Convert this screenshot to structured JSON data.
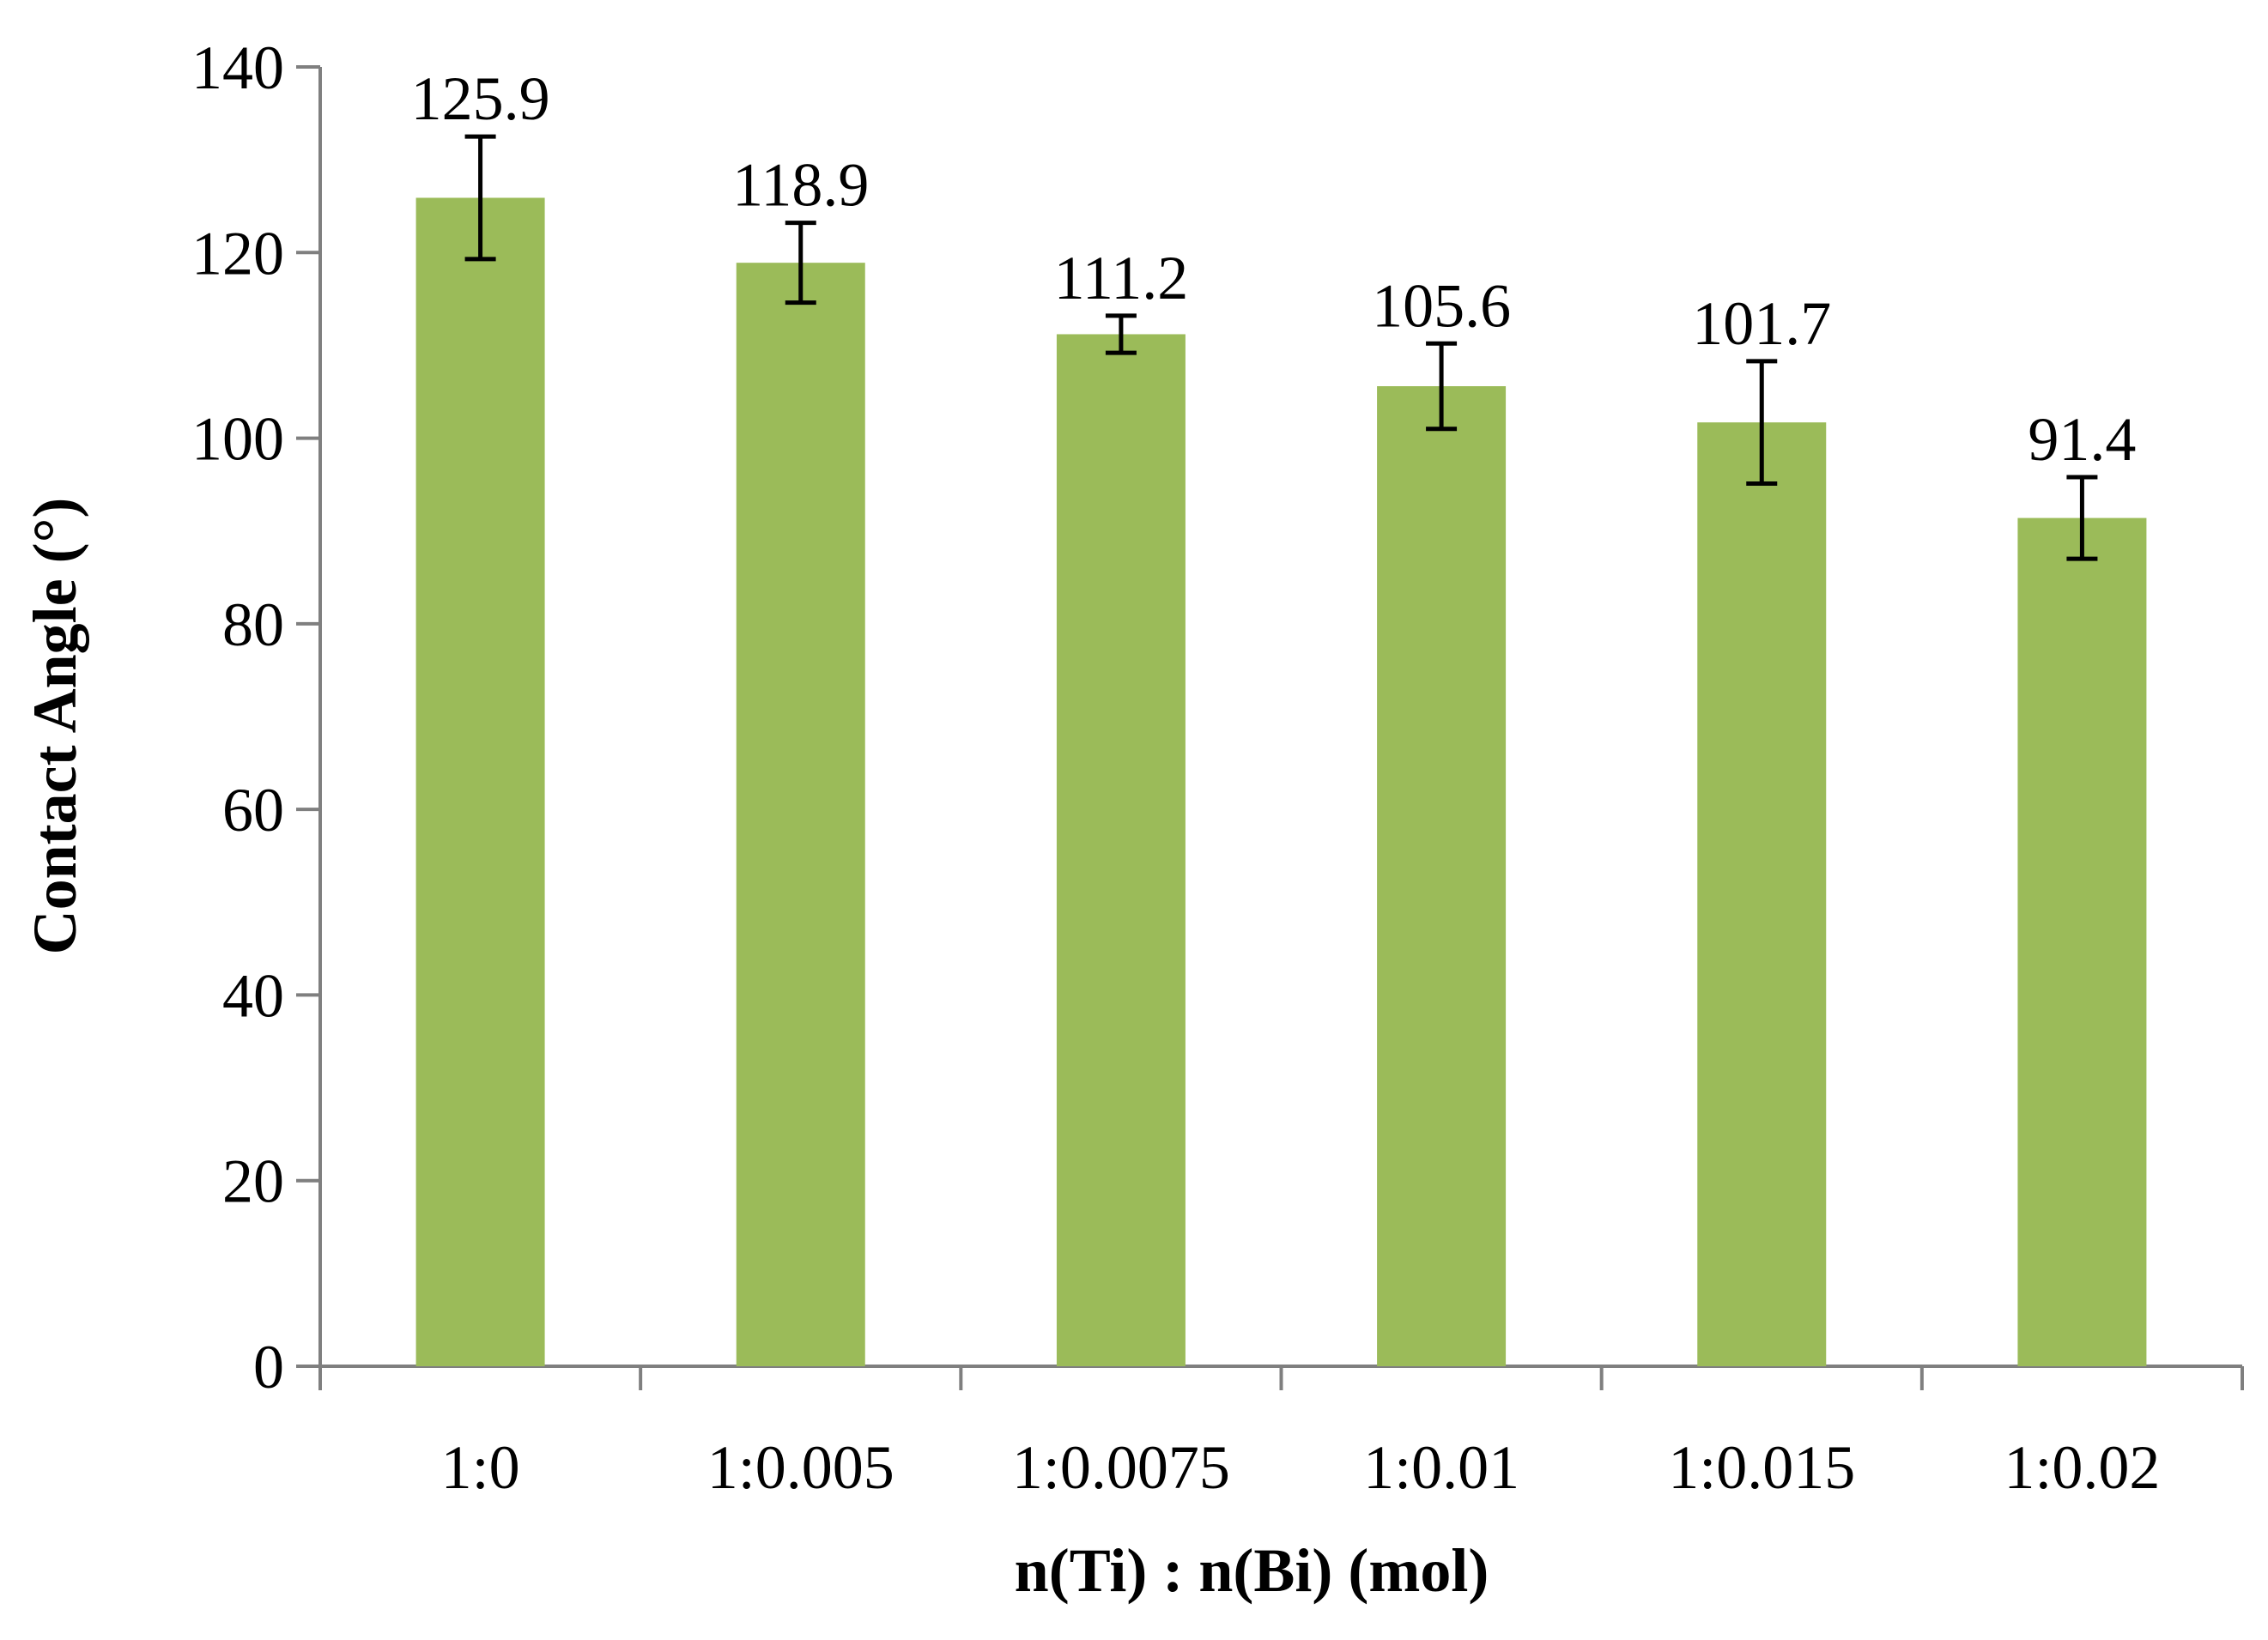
{
  "chart_data": {
    "type": "bar",
    "title": "",
    "xlabel": "n(Ti) : n(Bi) (mol)",
    "ylabel": "Contact Angle (°)",
    "categories": [
      "1:0",
      "1:0.005",
      "1:0.0075",
      "1:0.01",
      "1:0.015",
      "1:0.02"
    ],
    "values": [
      125.9,
      118.9,
      111.2,
      105.6,
      101.7,
      91.4
    ],
    "value_labels": [
      "125.9",
      "118.9",
      "111.2",
      "105.6",
      "101.7",
      "91.4"
    ],
    "error_bars": [
      6.6,
      4.3,
      2.0,
      4.6,
      6.6,
      4.4
    ],
    "ylim": [
      0,
      140
    ],
    "yticks": [
      "0",
      "20",
      "40",
      "60",
      "80",
      "100",
      "120",
      "140"
    ],
    "grid": false,
    "legend": "none",
    "bar_color": "#9bbb59",
    "axis_color": "#7f7f7f"
  }
}
